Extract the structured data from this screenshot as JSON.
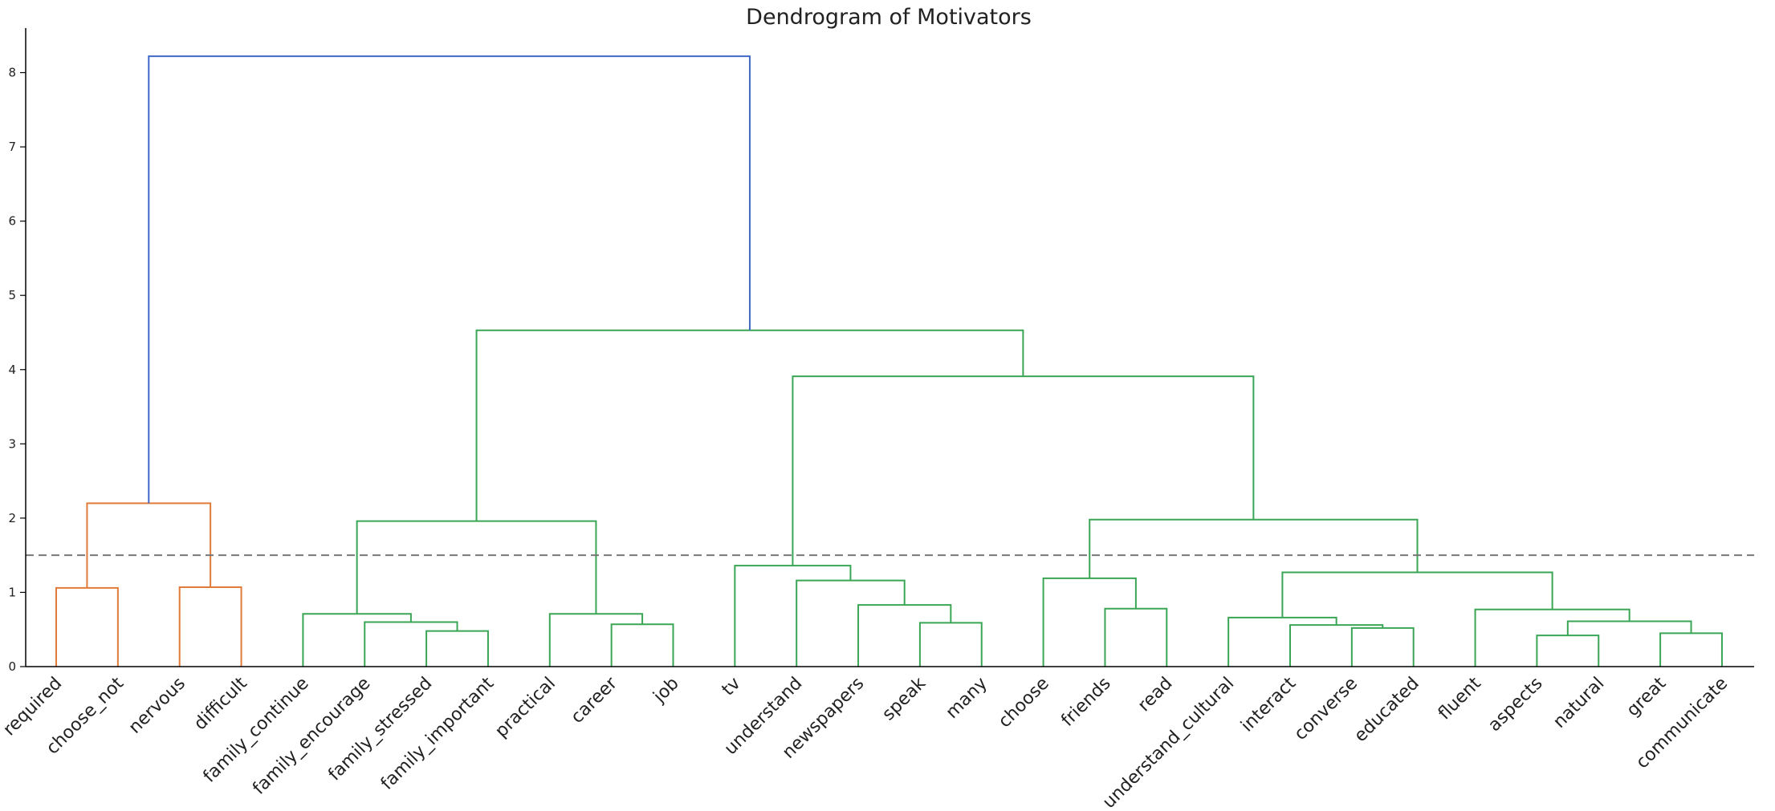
{
  "chart_data": {
    "type": "dendrogram",
    "title": "Dendrogram of Motivators",
    "xlabel": "",
    "ylabel": "",
    "ylim": [
      0,
      8.6
    ],
    "yticks": [
      0,
      1,
      2,
      3,
      4,
      5,
      6,
      7,
      8
    ],
    "grid": false,
    "legend": "none",
    "threshold": 1.5,
    "leaves": [
      "required",
      "choose_not",
      "nervous",
      "difficult",
      "family_continue",
      "family_encourage",
      "family_stressed",
      "family_important",
      "practical",
      "career",
      "job",
      "tv",
      "understand",
      "newspapers",
      "speak",
      "many",
      "choose",
      "friends",
      "read",
      "understand_cultural",
      "interact",
      "converse",
      "educated",
      "fluent",
      "aspects",
      "natural",
      "great",
      "communicate"
    ],
    "merges": [
      {
        "left": "L0",
        "right": "L1",
        "height": 1.06,
        "color": "orange"
      },
      {
        "left": "L2",
        "right": "L3",
        "height": 1.07,
        "color": "orange"
      },
      {
        "left": "M0",
        "right": "M1",
        "height": 2.2,
        "color": "orange"
      },
      {
        "left": "L6",
        "right": "L7",
        "height": 0.48,
        "color": "green"
      },
      {
        "left": "L5",
        "right": "M3",
        "height": 0.6,
        "color": "green"
      },
      {
        "left": "L4",
        "right": "M4",
        "height": 0.71,
        "color": "green"
      },
      {
        "left": "L9",
        "right": "L10",
        "height": 0.57,
        "color": "green"
      },
      {
        "left": "L8",
        "right": "M6",
        "height": 0.71,
        "color": "green"
      },
      {
        "left": "M5",
        "right": "M7",
        "height": 1.96,
        "color": "green"
      },
      {
        "left": "L14",
        "right": "L15",
        "height": 0.59,
        "color": "green"
      },
      {
        "left": "L13",
        "right": "M9",
        "height": 0.83,
        "color": "green"
      },
      {
        "left": "L12",
        "right": "M10",
        "height": 1.16,
        "color": "green"
      },
      {
        "left": "L11",
        "right": "M11",
        "height": 1.36,
        "color": "green"
      },
      {
        "left": "L17",
        "right": "L18",
        "height": 0.78,
        "color": "green"
      },
      {
        "left": "L16",
        "right": "M13",
        "height": 1.19,
        "color": "green"
      },
      {
        "left": "L21",
        "right": "L22",
        "height": 0.52,
        "color": "green"
      },
      {
        "left": "L20",
        "right": "M15",
        "height": 0.56,
        "color": "green"
      },
      {
        "left": "L19",
        "right": "M16",
        "height": 0.66,
        "color": "green"
      },
      {
        "left": "L24",
        "right": "L25",
        "height": 0.42,
        "color": "green"
      },
      {
        "left": "L26",
        "right": "L27",
        "height": 0.45,
        "color": "green"
      },
      {
        "left": "M18",
        "right": "M19",
        "height": 0.61,
        "color": "green"
      },
      {
        "left": "L23",
        "right": "M20",
        "height": 0.77,
        "color": "green"
      },
      {
        "left": "M17",
        "right": "M21",
        "height": 1.27,
        "color": "green"
      },
      {
        "left": "M14",
        "right": "M22",
        "height": 1.98,
        "color": "green"
      },
      {
        "left": "M12",
        "right": "M23",
        "height": 3.91,
        "color": "green"
      },
      {
        "left": "M8",
        "right": "M24",
        "height": 4.53,
        "color": "green"
      },
      {
        "left": "M2",
        "right": "M25",
        "height": 8.22,
        "color": "blue"
      }
    ],
    "colors": {
      "orange": "#e07b39",
      "green": "#3aa655",
      "blue": "#4169c8",
      "threshold": "#777777",
      "axis": "#000000",
      "text": "#222222"
    }
  }
}
